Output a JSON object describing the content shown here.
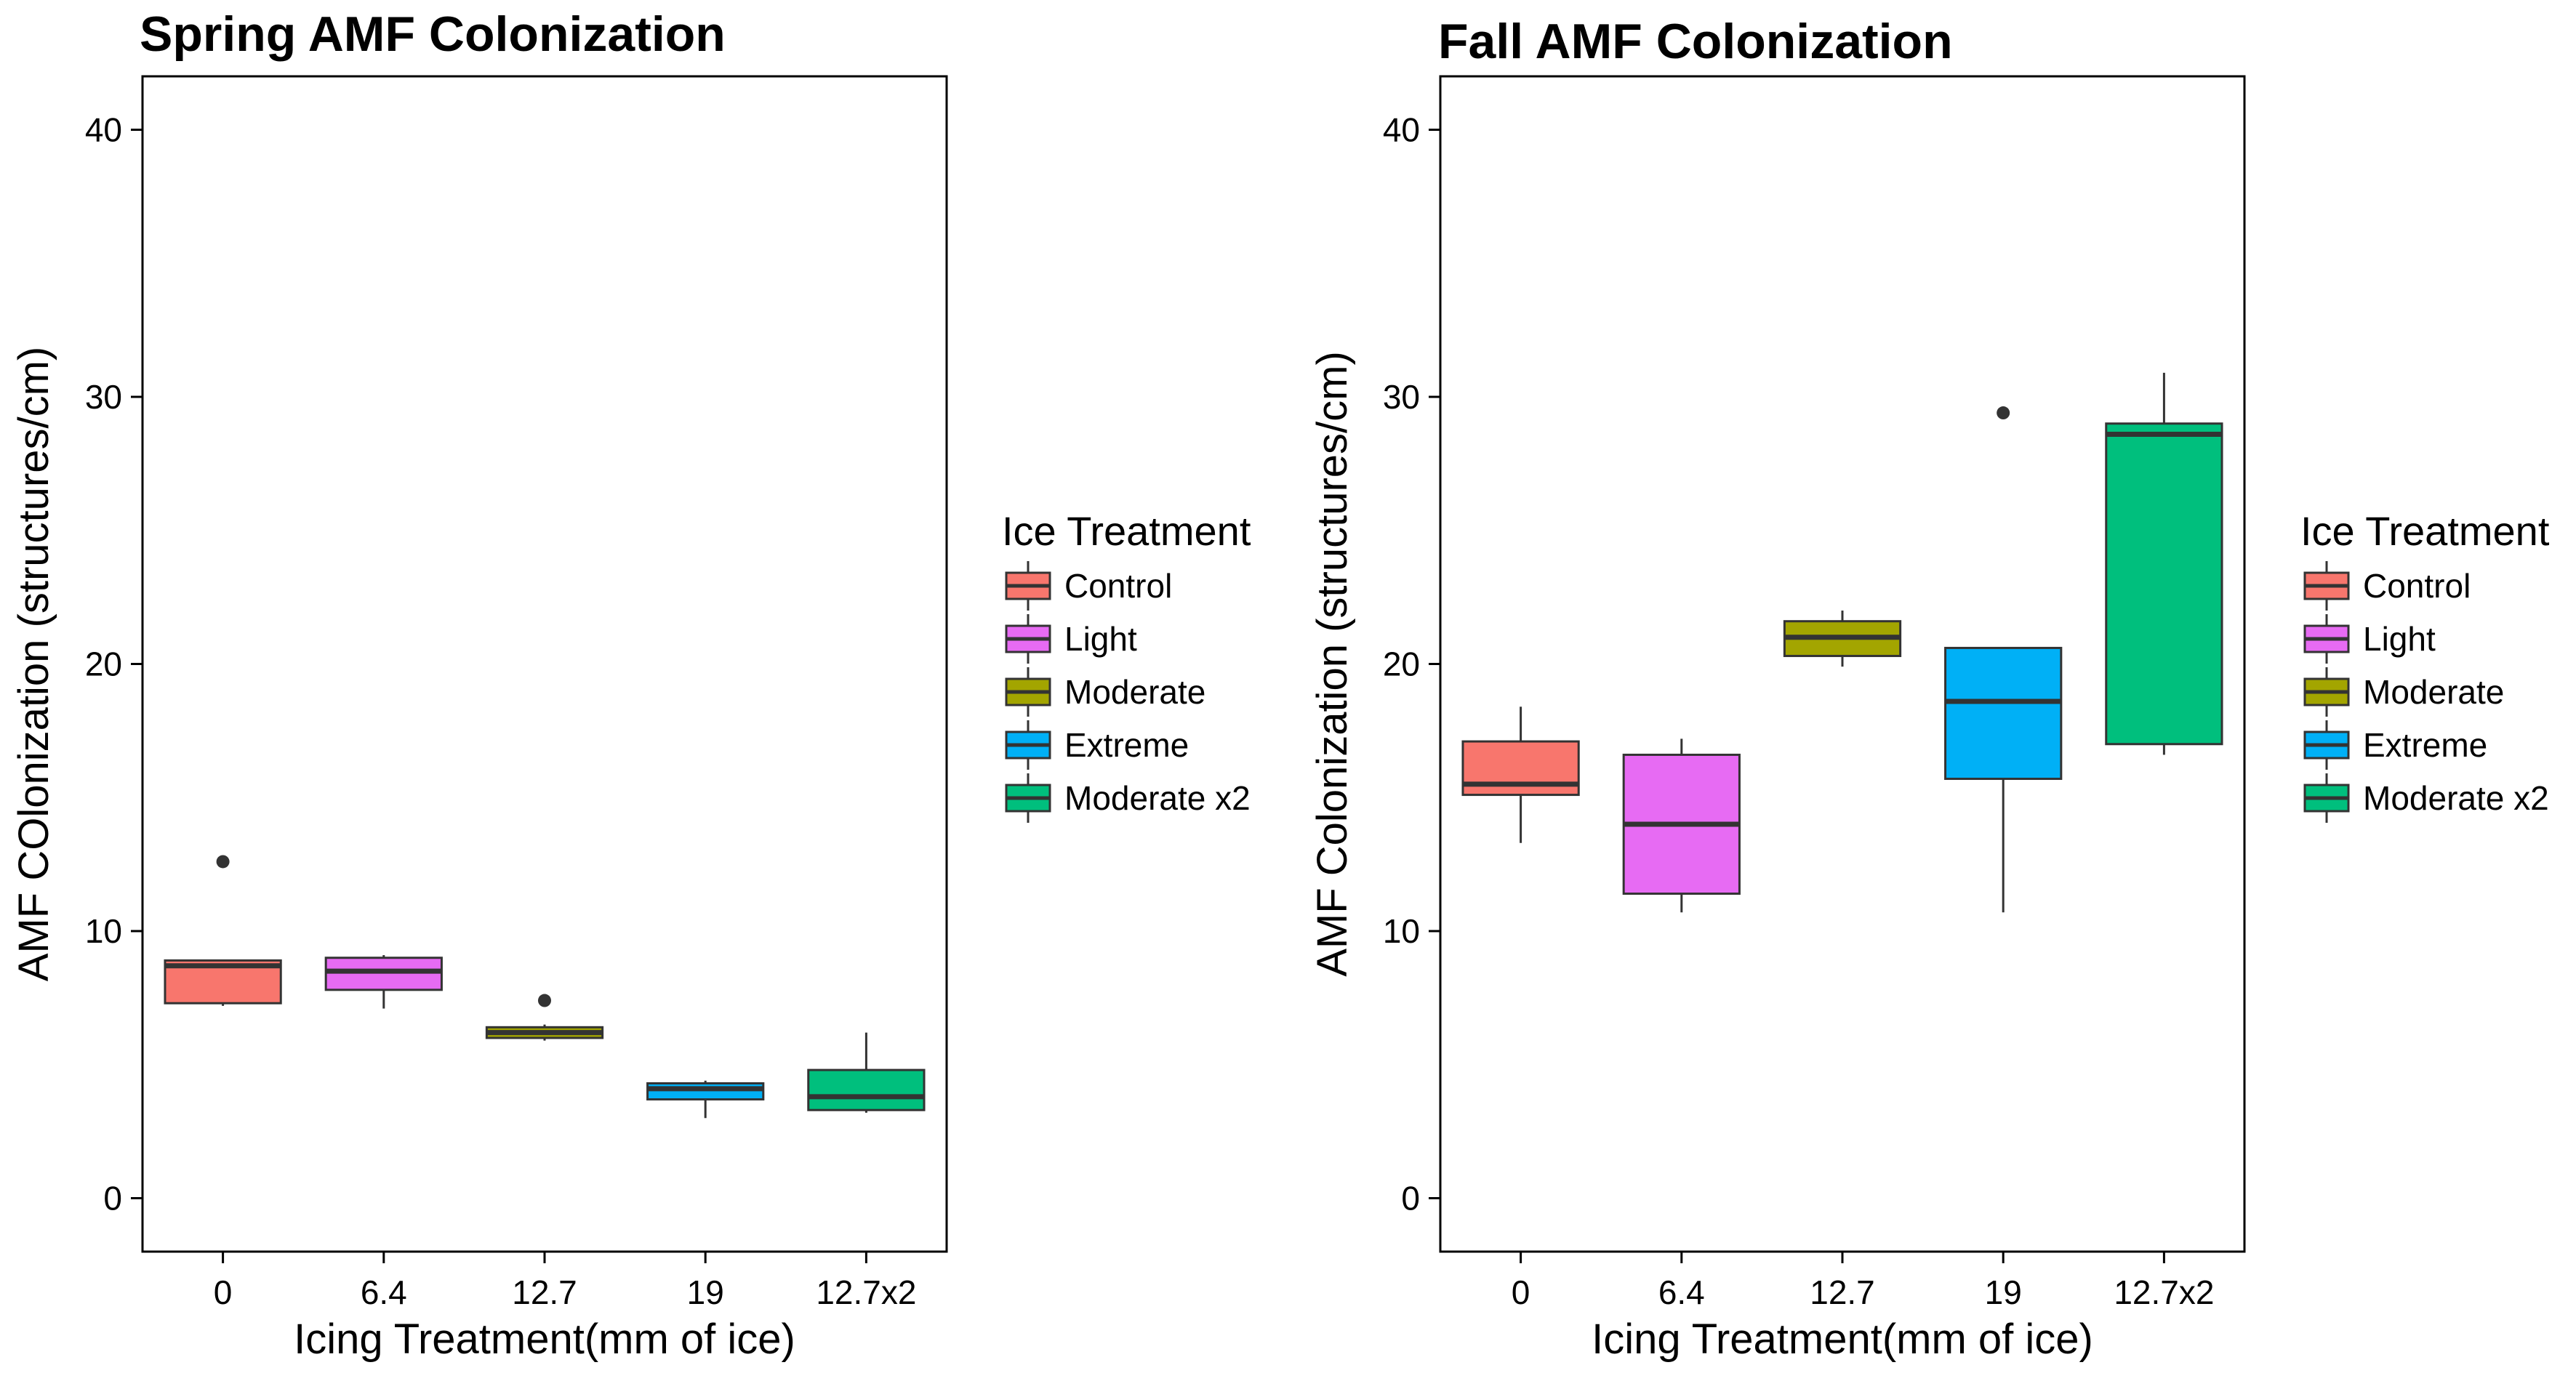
{
  "chart_data": [
    {
      "type": "box",
      "title": "Spring AMF Colonization",
      "xlabel": "Icing Treatment(mm of ice)",
      "ylabel": "AMF COlonization (structures/cm)",
      "ylim": [
        -2,
        42
      ],
      "yticks": [
        0,
        10,
        20,
        30,
        40
      ],
      "categories": [
        "0",
        "6.4",
        "12.7",
        "19",
        "12.7x2"
      ],
      "grid": false,
      "boxes": [
        {
          "category": "0",
          "group": "Control",
          "whisker_low": 7.2,
          "q1": 7.3,
          "median": 8.7,
          "q3": 8.9,
          "whisker_high": 8.9,
          "outliers": [
            12.6
          ]
        },
        {
          "category": "6.4",
          "group": "Light",
          "whisker_low": 7.1,
          "q1": 7.8,
          "median": 8.5,
          "q3": 9.0,
          "whisker_high": 9.1,
          "outliers": []
        },
        {
          "category": "12.7",
          "group": "Moderate",
          "whisker_low": 5.9,
          "q1": 6.0,
          "median": 6.2,
          "q3": 6.4,
          "whisker_high": 6.5,
          "outliers": [
            7.4
          ]
        },
        {
          "category": "19",
          "group": "Extreme",
          "whisker_low": 3.0,
          "q1": 3.7,
          "median": 4.1,
          "q3": 4.3,
          "whisker_high": 4.4,
          "outliers": []
        },
        {
          "category": "12.7x2",
          "group": "Moderate x2",
          "whisker_low": 3.2,
          "q1": 3.3,
          "median": 3.8,
          "q3": 4.8,
          "whisker_high": 6.2,
          "outliers": []
        }
      ]
    },
    {
      "type": "box",
      "title": "Fall AMF Colonization",
      "xlabel": "Icing Treatment(mm of ice)",
      "ylabel": "AMF Colonization (structures/cm)",
      "ylim": [
        -2,
        42
      ],
      "yticks": [
        0,
        10,
        20,
        30,
        40
      ],
      "categories": [
        "0",
        "6.4",
        "12.7",
        "19",
        "12.7x2"
      ],
      "grid": false,
      "boxes": [
        {
          "category": "0",
          "group": "Control",
          "whisker_low": 13.3,
          "q1": 15.1,
          "median": 15.5,
          "q3": 17.1,
          "whisker_high": 18.4,
          "outliers": []
        },
        {
          "category": "6.4",
          "group": "Light",
          "whisker_low": 10.7,
          "q1": 11.4,
          "median": 14.0,
          "q3": 16.6,
          "whisker_high": 17.2,
          "outliers": []
        },
        {
          "category": "12.7",
          "group": "Moderate",
          "whisker_low": 19.9,
          "q1": 20.3,
          "median": 21.0,
          "q3": 21.6,
          "whisker_high": 22.0,
          "outliers": []
        },
        {
          "category": "19",
          "group": "Extreme",
          "whisker_low": 10.7,
          "q1": 15.7,
          "median": 18.6,
          "q3": 20.6,
          "whisker_high": 20.6,
          "outliers": [
            29.4
          ]
        },
        {
          "category": "12.7x2",
          "group": "Moderate x2",
          "whisker_low": 16.6,
          "q1": 17.0,
          "median": 28.6,
          "q3": 29.0,
          "whisker_high": 30.9,
          "outliers": []
        }
      ]
    }
  ],
  "legend": {
    "title": "Ice Treatment",
    "placement": "right",
    "items": [
      {
        "label": "Control",
        "color": "#F8766D"
      },
      {
        "label": "Light",
        "color": "#E76BF3"
      },
      {
        "label": "Moderate",
        "color": "#A3A500"
      },
      {
        "label": "Extreme",
        "color": "#00B0F6"
      },
      {
        "label": "Moderate x2",
        "color": "#00BF7D"
      }
    ]
  }
}
